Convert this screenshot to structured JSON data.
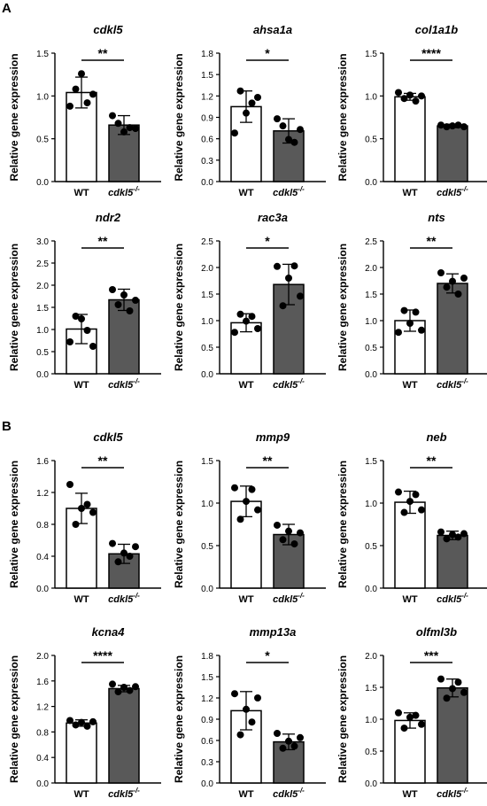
{
  "panels": [
    {
      "label": "A"
    },
    {
      "label": "B"
    }
  ],
  "chart_data": [
    {
      "type": "bar",
      "title": "cdkl5",
      "categories": [
        "WT",
        "cdkl5 -/-"
      ],
      "values": [
        1.04,
        0.66
      ],
      "ylabel": "Relative gene expression",
      "ylim": [
        0,
        1.5
      ],
      "yticks": [
        "0.0",
        "0.5",
        "1.0",
        "1.5"
      ],
      "significance": "**",
      "points": [
        [
          0.88,
          1.08,
          1.26,
          0.92,
          1.02
        ],
        [
          0.77,
          0.68,
          0.58,
          0.63,
          0.62
        ]
      ],
      "sd": [
        0.18,
        0.11
      ]
    },
    {
      "type": "bar",
      "title": "ahsa1a",
      "categories": [
        "WT",
        "cdkl5 -/-"
      ],
      "values": [
        1.05,
        0.71
      ],
      "ylabel": "Relative gene expression",
      "ylim": [
        0,
        1.8
      ],
      "yticks": [
        "0.0",
        "0.3",
        "0.6",
        "0.9",
        "1.2",
        "1.5",
        "1.8"
      ],
      "significance": "*",
      "points": [
        [
          0.68,
          1.27,
          0.96,
          1.1,
          1.18
        ],
        [
          0.88,
          0.78,
          0.59,
          0.55,
          0.73
        ]
      ],
      "sd": [
        0.22,
        0.17
      ]
    },
    {
      "type": "bar",
      "title": "col1a1b",
      "categories": [
        "WT",
        "cdkl5 -/-"
      ],
      "values": [
        0.99,
        0.65
      ],
      "ylabel": "Relative gene expression",
      "ylim": [
        0,
        1.5
      ],
      "yticks": [
        "0.0",
        "0.5",
        "1.0",
        "1.5"
      ],
      "significance": "****",
      "points": [
        [
          1.04,
          0.97,
          1.01,
          0.94,
          1.0
        ],
        [
          0.66,
          0.64,
          0.65,
          0.66,
          0.64
        ]
      ],
      "sd": [
        0.04,
        0.02
      ]
    },
    {
      "type": "bar",
      "title": "ndr2",
      "categories": [
        "WT",
        "cdkl5 -/-"
      ],
      "values": [
        1.01,
        1.67
      ],
      "ylabel": "Relative gene expression",
      "ylim": [
        0,
        3.0
      ],
      "yticks": [
        "0.0",
        "0.5",
        "1.0",
        "1.5",
        "2.0",
        "2.5",
        "3.0"
      ],
      "significance": "**",
      "points": [
        [
          0.72,
          1.3,
          1.24,
          0.98,
          0.62
        ],
        [
          1.9,
          1.56,
          1.78,
          1.42,
          1.66
        ]
      ],
      "sd": [
        0.33,
        0.24
      ]
    },
    {
      "type": "bar",
      "title": "rac3a",
      "categories": [
        "WT",
        "cdkl5 -/-"
      ],
      "values": [
        0.96,
        1.68
      ],
      "ylabel": "Relative gene expression",
      "ylim": [
        0,
        2.5
      ],
      "yticks": [
        "0.0",
        "0.5",
        "1.0",
        "1.5",
        "2.0",
        "2.5"
      ],
      "significance": "*",
      "points": [
        [
          0.78,
          1.12,
          0.99,
          1.08,
          0.85
        ],
        [
          2.02,
          1.28,
          1.8,
          2.03,
          1.46
        ]
      ],
      "sd": [
        0.17,
        0.38
      ]
    },
    {
      "type": "bar",
      "title": "nts",
      "categories": [
        "WT",
        "cdkl5 -/-"
      ],
      "values": [
        1.0,
        1.7
      ],
      "ylabel": "Relative gene expression",
      "ylim": [
        0,
        2.5
      ],
      "yticks": [
        "0.0",
        "0.5",
        "1.0",
        "1.5",
        "2.0",
        "2.5"
      ],
      "significance": "**",
      "points": [
        [
          0.78,
          1.19,
          0.95,
          1.16,
          0.82
        ],
        [
          1.9,
          1.63,
          1.74,
          1.5,
          1.8
        ]
      ],
      "sd": [
        0.2,
        0.18
      ]
    },
    {
      "type": "bar",
      "title": "cdkl5",
      "categories": [
        "WT",
        "cdkl5 -/-"
      ],
      "values": [
        1.0,
        0.43
      ],
      "ylabel": "Relative gene expression",
      "ylim": [
        0,
        1.6
      ],
      "yticks": [
        "0.0",
        "0.4",
        "0.8",
        "1.2",
        "1.6"
      ],
      "significance": "**",
      "points": [
        [
          1.3,
          0.8,
          1.0,
          1.05,
          0.95
        ],
        [
          0.56,
          0.33,
          0.44,
          0.4,
          0.52
        ]
      ],
      "sd": [
        0.19,
        0.12
      ]
    },
    {
      "type": "bar",
      "title": "mmp9",
      "categories": [
        "WT",
        "cdkl5 -/-"
      ],
      "values": [
        1.02,
        0.63
      ],
      "ylabel": "Relative gene expression",
      "ylim": [
        0,
        1.5
      ],
      "yticks": [
        "0.0",
        "0.5",
        "1.0",
        "1.5"
      ],
      "significance": "**",
      "points": [
        [
          1.18,
          0.81,
          1.02,
          1.16,
          0.92
        ],
        [
          0.74,
          0.57,
          0.67,
          0.52,
          0.65
        ]
      ],
      "sd": [
        0.18,
        0.12
      ]
    },
    {
      "type": "bar",
      "title": "neb",
      "categories": [
        "WT",
        "cdkl5 -/-"
      ],
      "values": [
        1.01,
        0.62
      ],
      "ylabel": "Relative gene expression",
      "ylim": [
        0,
        1.5
      ],
      "yticks": [
        "0.0",
        "0.5",
        "1.0",
        "1.5"
      ],
      "significance": "**",
      "points": [
        [
          1.13,
          0.89,
          1.02,
          1.1,
          0.92
        ],
        [
          0.66,
          0.58,
          0.63,
          0.6,
          0.64
        ]
      ],
      "sd": [
        0.13,
        0.05
      ]
    },
    {
      "type": "bar",
      "title": "kcna4",
      "categories": [
        "WT",
        "cdkl5 -/-"
      ],
      "values": [
        0.94,
        1.48
      ],
      "ylabel": "Relative gene expression",
      "ylim": [
        0,
        2.0
      ],
      "yticks": [
        "0.0",
        "0.4",
        "0.8",
        "1.2",
        "1.6",
        "2.0"
      ],
      "significance": "****",
      "points": [
        [
          0.98,
          0.91,
          0.95,
          0.89,
          0.96
        ],
        [
          1.55,
          1.43,
          1.5,
          1.45,
          1.51
        ]
      ],
      "sd": [
        0.05,
        0.05
      ]
    },
    {
      "type": "bar",
      "title": "mmp13a",
      "categories": [
        "WT",
        "cdkl5 -/-"
      ],
      "values": [
        1.02,
        0.58
      ],
      "ylabel": "Relative gene expression",
      "ylim": [
        0,
        1.8
      ],
      "yticks": [
        "0.0",
        "0.3",
        "0.6",
        "0.9",
        "1.2",
        "1.5",
        "1.8"
      ],
      "significance": "*",
      "points": [
        [
          1.26,
          0.68,
          1.04,
          0.86,
          1.2
        ],
        [
          0.7,
          0.49,
          0.59,
          0.52,
          0.64
        ]
      ],
      "sd": [
        0.27,
        0.11
      ]
    },
    {
      "type": "bar",
      "title": "olfml3b",
      "categories": [
        "WT",
        "cdkl5 -/-"
      ],
      "values": [
        0.98,
        1.49
      ],
      "ylabel": "Relative gene expression",
      "ylim": [
        0,
        2.0
      ],
      "yticks": [
        "0.0",
        "0.5",
        "1.0",
        "1.5",
        "2.0"
      ],
      "significance": "***",
      "points": [
        [
          1.1,
          0.86,
          1.03,
          1.06,
          0.92
        ],
        [
          1.63,
          1.33,
          1.48,
          1.58,
          1.42
        ]
      ],
      "sd": [
        0.12,
        0.14
      ]
    }
  ]
}
